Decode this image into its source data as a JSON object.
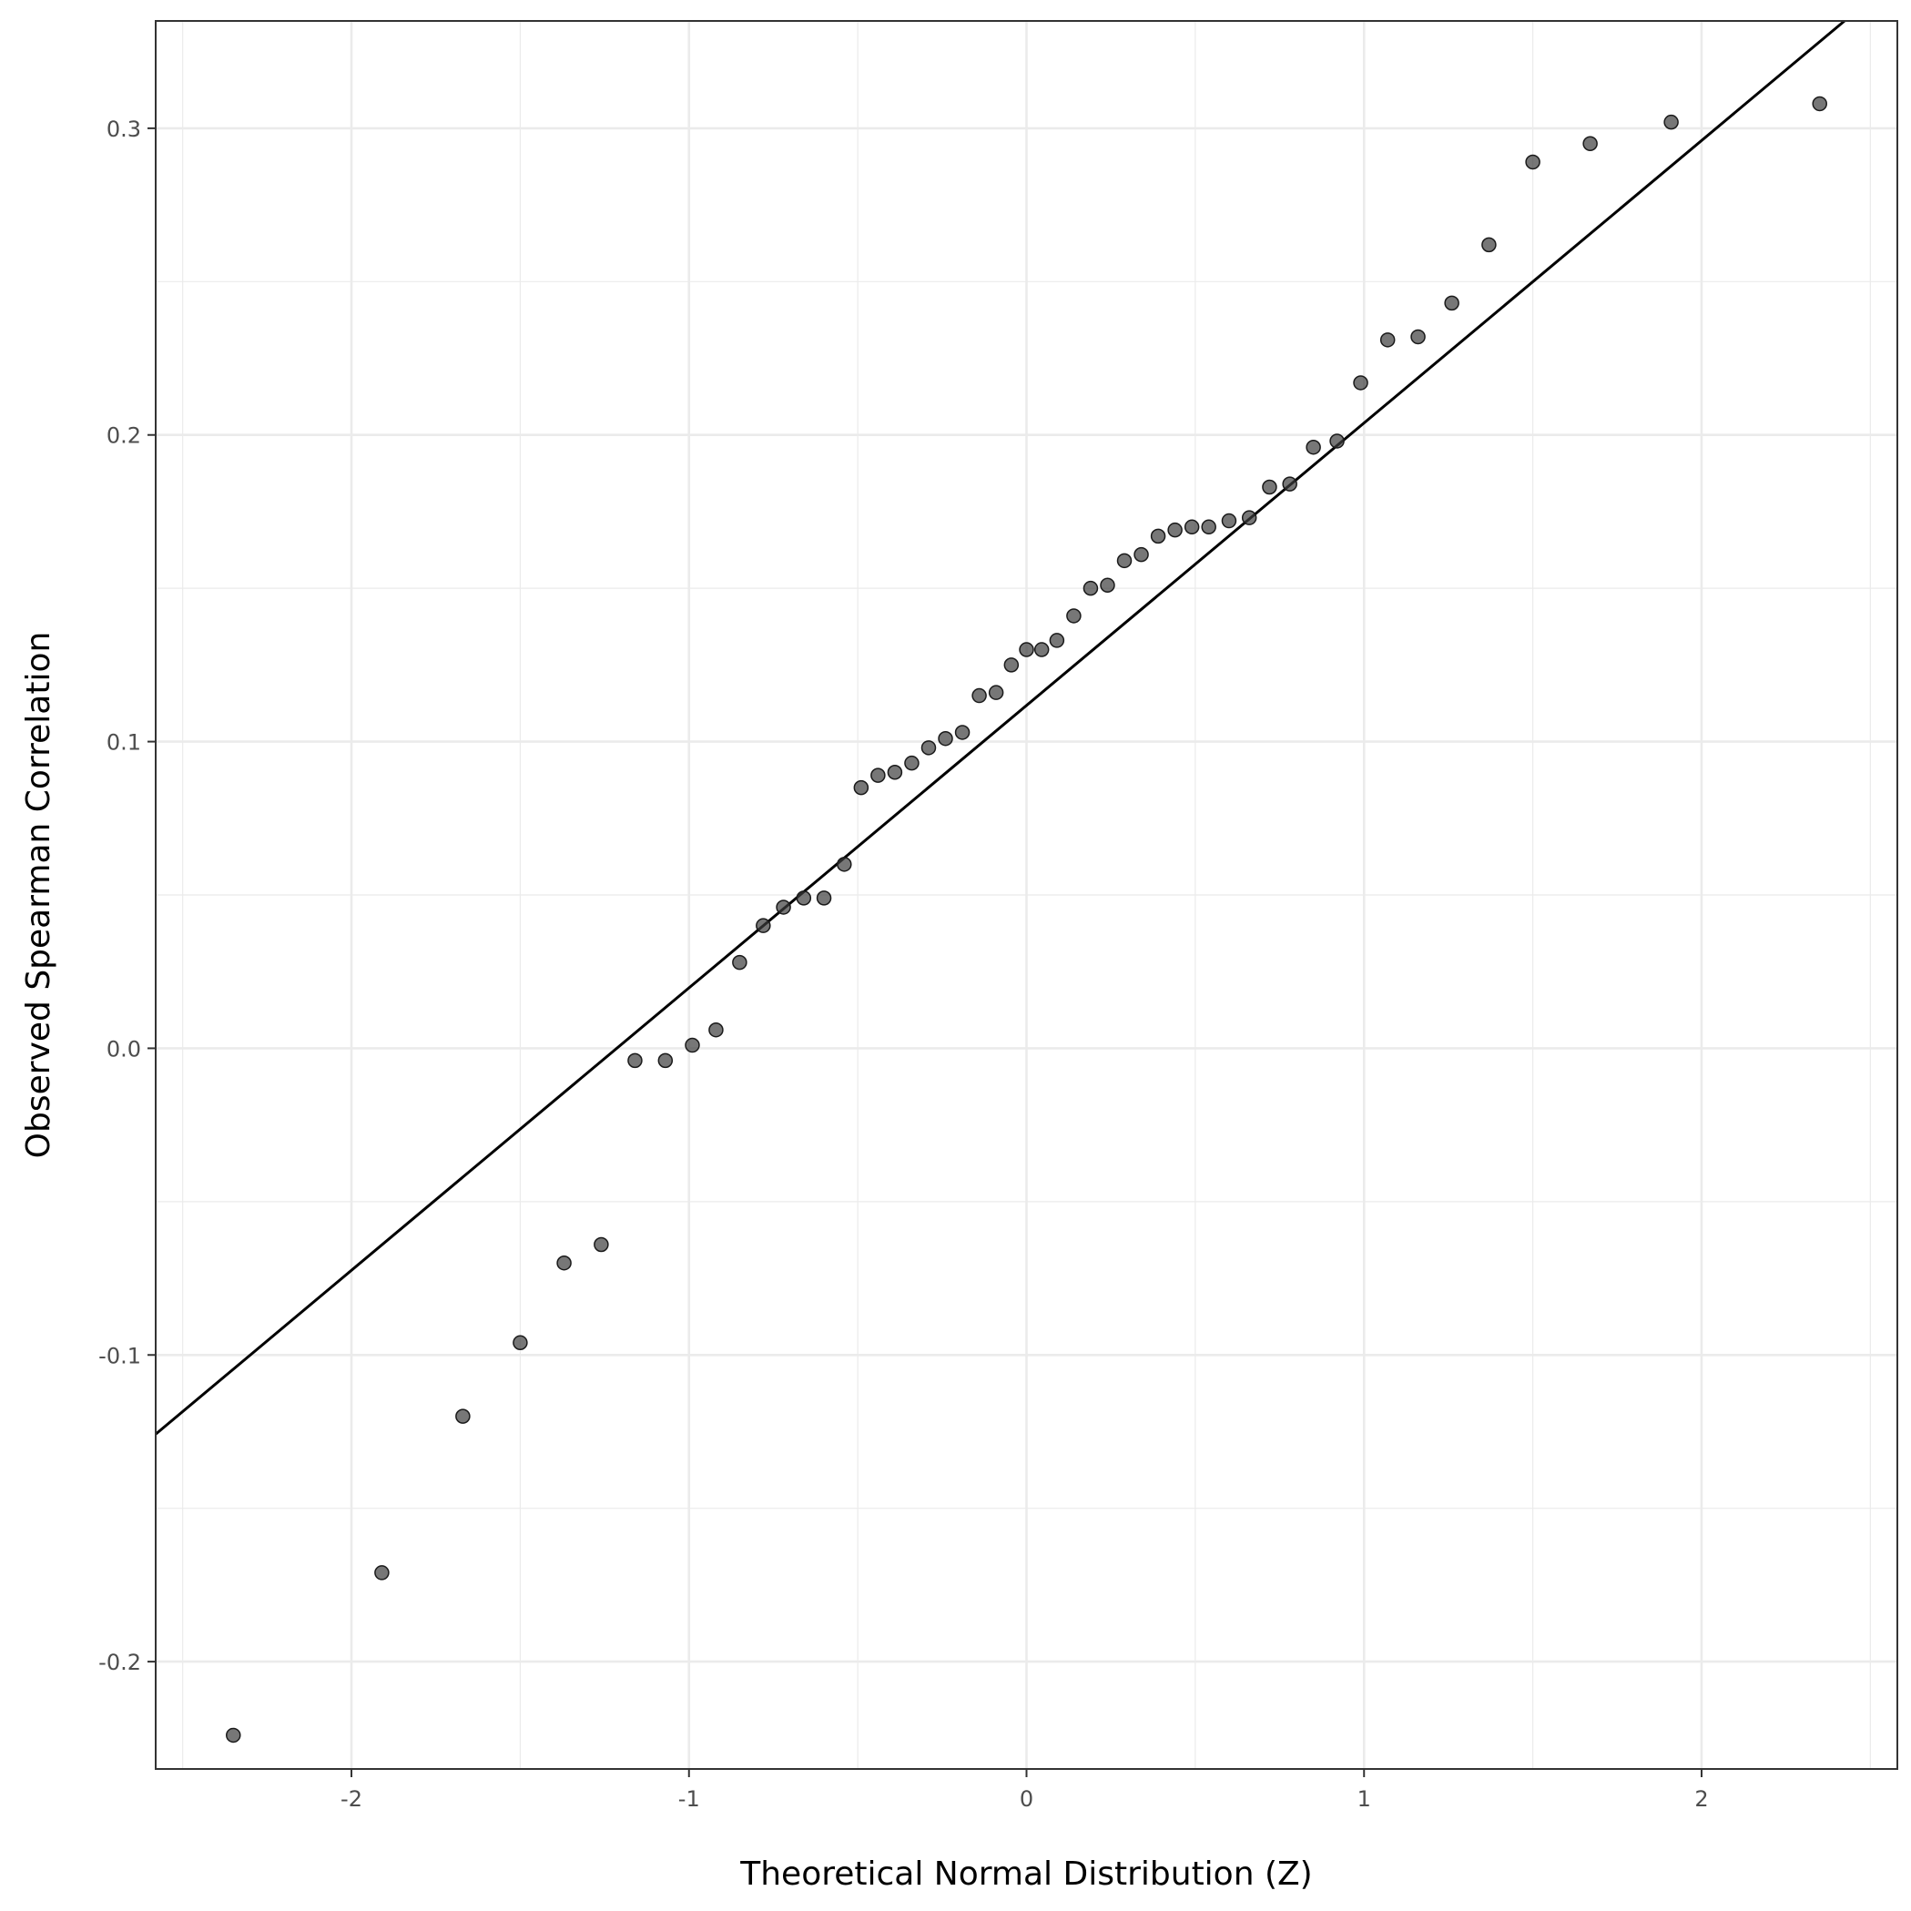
{
  "chart_data": {
    "type": "scatter",
    "xlabel": "Theoretical Normal Distribution (Z)",
    "ylabel": "Observed Spearman Correlation",
    "xlim": [
      -2.58,
      2.58
    ],
    "ylim": [
      -0.235,
      0.335
    ],
    "x_ticks": [
      -2,
      -1,
      0,
      1,
      2
    ],
    "y_ticks": [
      -0.2,
      -0.1,
      0.0,
      0.1,
      0.2,
      0.3
    ],
    "x_tick_labels": [
      "-2",
      "-1",
      "0",
      "1",
      "2"
    ],
    "y_tick_labels": [
      "-0.2",
      "-0.1",
      "0.0",
      "0.1",
      "0.2",
      "0.3"
    ],
    "grid": true,
    "reference_line": {
      "intercept": 0.1118,
      "slope": 0.0921
    },
    "points": [
      {
        "x": -2.35,
        "y": -0.224
      },
      {
        "x": -1.91,
        "y": -0.171
      },
      {
        "x": -1.67,
        "y": -0.12
      },
      {
        "x": -1.5,
        "y": -0.096
      },
      {
        "x": -1.37,
        "y": -0.07
      },
      {
        "x": -1.26,
        "y": -0.064
      },
      {
        "x": -1.16,
        "y": -0.004
      },
      {
        "x": -1.07,
        "y": -0.004
      },
      {
        "x": -0.99,
        "y": 0.001
      },
      {
        "x": -0.92,
        "y": 0.006
      },
      {
        "x": -0.85,
        "y": 0.028
      },
      {
        "x": -0.78,
        "y": 0.04
      },
      {
        "x": -0.72,
        "y": 0.046
      },
      {
        "x": -0.66,
        "y": 0.049
      },
      {
        "x": -0.6,
        "y": 0.049
      },
      {
        "x": -0.54,
        "y": 0.06
      },
      {
        "x": -0.49,
        "y": 0.085
      },
      {
        "x": -0.44,
        "y": 0.089
      },
      {
        "x": -0.39,
        "y": 0.09
      },
      {
        "x": -0.34,
        "y": 0.093
      },
      {
        "x": -0.29,
        "y": 0.098
      },
      {
        "x": -0.24,
        "y": 0.101
      },
      {
        "x": -0.19,
        "y": 0.103
      },
      {
        "x": -0.14,
        "y": 0.115
      },
      {
        "x": -0.09,
        "y": 0.116
      },
      {
        "x": -0.045,
        "y": 0.125
      },
      {
        "x": 0.0,
        "y": 0.13
      },
      {
        "x": 0.045,
        "y": 0.13
      },
      {
        "x": 0.09,
        "y": 0.133
      },
      {
        "x": 0.14,
        "y": 0.141
      },
      {
        "x": 0.19,
        "y": 0.15
      },
      {
        "x": 0.24,
        "y": 0.151
      },
      {
        "x": 0.29,
        "y": 0.159
      },
      {
        "x": 0.34,
        "y": 0.161
      },
      {
        "x": 0.39,
        "y": 0.167
      },
      {
        "x": 0.44,
        "y": 0.169
      },
      {
        "x": 0.49,
        "y": 0.17
      },
      {
        "x": 0.54,
        "y": 0.17
      },
      {
        "x": 0.6,
        "y": 0.172
      },
      {
        "x": 0.66,
        "y": 0.173
      },
      {
        "x": 0.72,
        "y": 0.183
      },
      {
        "x": 0.78,
        "y": 0.184
      },
      {
        "x": 0.85,
        "y": 0.196
      },
      {
        "x": 0.92,
        "y": 0.198
      },
      {
        "x": 0.99,
        "y": 0.217
      },
      {
        "x": 1.07,
        "y": 0.231
      },
      {
        "x": 1.16,
        "y": 0.232
      },
      {
        "x": 1.26,
        "y": 0.243
      },
      {
        "x": 1.37,
        "y": 0.262
      },
      {
        "x": 1.5,
        "y": 0.289
      },
      {
        "x": 1.67,
        "y": 0.295
      },
      {
        "x": 1.91,
        "y": 0.302
      },
      {
        "x": 2.35,
        "y": 0.308
      }
    ],
    "point_color": "#3d3d3d",
    "line_color": "#000000",
    "grid_color": "#ebebeb",
    "panel_border_color": "#333333"
  }
}
